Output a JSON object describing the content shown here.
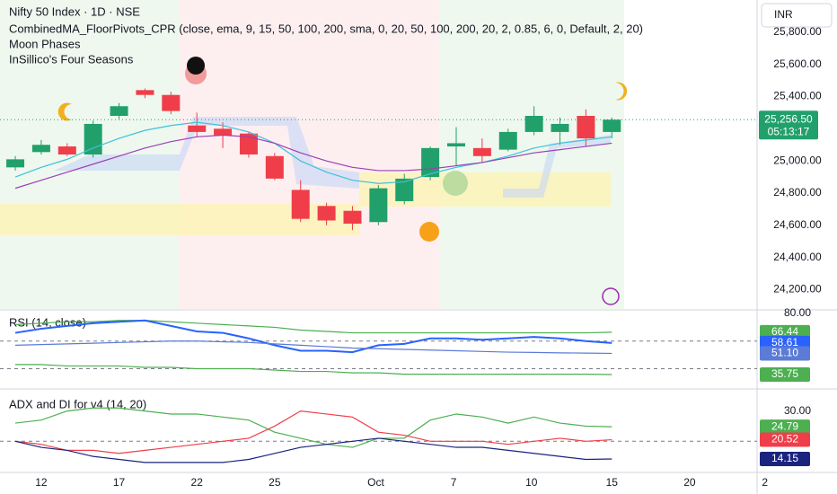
{
  "chart_data": [
    {
      "type": "candlestick",
      "title": "Nifty 50 Index · 1D · NSE",
      "annotations": [
        "CombinedMA_FloorPivots_CPR (close, ema, 9, 15, 50, 100, 200, sma, 0, 20, 50, 100, 200, 20, 2, 0.85, 6, 0, Default, 2, 20)",
        "Moon Phases",
        "InSillico's Four Seasons"
      ],
      "currency": "INR",
      "x": [
        0,
        1,
        2,
        3,
        4,
        5,
        6,
        7,
        8,
        9,
        10,
        11,
        12,
        13,
        14,
        15,
        16,
        17,
        18,
        19,
        20,
        21,
        22,
        23
      ],
      "open": [
        24960,
        25055,
        25090,
        25040,
        25280,
        25440,
        25410,
        25220,
        25200,
        25170,
        25030,
        24820,
        24720,
        24690,
        24620,
        24750,
        24900,
        25090,
        25080,
        25070,
        25180,
        25180,
        25280,
        25180
      ],
      "high": [
        25030,
        25130,
        25110,
        25250,
        25360,
        25450,
        25430,
        25300,
        25240,
        25180,
        25050,
        24880,
        24740,
        24720,
        24850,
        24920,
        25090,
        25210,
        25140,
        25200,
        25340,
        25270,
        25320,
        25270
      ],
      "low": [
        24940,
        25040,
        25030,
        25020,
        25260,
        25390,
        25290,
        25150,
        25080,
        25020,
        24880,
        24620,
        24600,
        24570,
        24600,
        24730,
        24880,
        24970,
        24990,
        25060,
        25160,
        25100,
        25090,
        25140
      ],
      "close": [
        25010,
        25100,
        25040,
        25230,
        25340,
        25410,
        25310,
        25180,
        25160,
        25040,
        24890,
        24640,
        24630,
        24610,
        24830,
        24890,
        25080,
        25110,
        25030,
        25180,
        25280,
        25230,
        25140,
        25256.5
      ],
      "last_label": "25,256.50",
      "countdown": "05:13:17",
      "up_color": "#22a06b",
      "down_color": "#ef3e4a",
      "series": [
        {
          "color": "#3fc1d9",
          "values": [
            24900,
            24960,
            25010,
            25080,
            25140,
            25190,
            25220,
            25240,
            25220,
            25180,
            25110,
            25000,
            24930,
            24880,
            24860,
            24870,
            24920,
            24960,
            24990,
            25030,
            25080,
            25110,
            25130,
            25150
          ]
        },
        {
          "color": "#9c3fb8",
          "values": [
            24830,
            24880,
            24930,
            24980,
            25030,
            25080,
            25120,
            25150,
            25160,
            25150,
            25110,
            25050,
            25000,
            24960,
            24940,
            24940,
            24950,
            24970,
            24990,
            25020,
            25050,
            25070,
            25090,
            25110
          ]
        }
      ],
      "xlim": [
        -0.59,
        28.6
      ],
      "ylim": [
        24080,
        26000
      ],
      "yticks": [
        {
          "value": 25800,
          "label": "25,800.00"
        },
        {
          "value": 25600,
          "label": "25,600.00"
        },
        {
          "value": 25400,
          "label": "25,400.00"
        },
        {
          "value": 25000,
          "label": "25,000.00"
        },
        {
          "value": 24800,
          "label": "24,800.00"
        },
        {
          "value": 24600,
          "label": "24,600.00"
        },
        {
          "value": 24400,
          "label": "24,400.00"
        },
        {
          "value": 24200,
          "label": "24,200.00"
        }
      ],
      "xticks": [
        {
          "value": 1,
          "label": "12"
        },
        {
          "value": 4,
          "label": "17"
        },
        {
          "value": 7,
          "label": "22"
        },
        {
          "value": 10,
          "label": "25"
        },
        {
          "value": 13.9,
          "label": "Oct"
        },
        {
          "value": 16.9,
          "label": "7"
        },
        {
          "value": 19.9,
          "label": "10"
        },
        {
          "value": 23,
          "label": "15"
        },
        {
          "value": 26,
          "label": "20"
        },
        {
          "value": 28.9,
          "label": "2"
        }
      ]
    },
    {
      "type": "line",
      "title": "RSI (14, close)",
      "ylim": [
        26,
        82
      ],
      "yticks": [
        {
          "value": 80,
          "label": "80.00"
        }
      ],
      "levels": [
        60,
        40
      ],
      "series": [
        {
          "color": "#4caf50",
          "values": [
            72,
            73,
            74,
            74,
            75,
            75,
            74,
            73,
            72,
            71,
            70,
            68,
            67,
            66,
            66,
            66,
            66,
            66,
            66,
            66,
            66,
            66,
            66,
            66.44
          ],
          "last_label": "66.44"
        },
        {
          "color": "#2962ff",
          "values": [
            66,
            69,
            71,
            73,
            74,
            75,
            71,
            67,
            66,
            62,
            57,
            53,
            53,
            52,
            57,
            58,
            62,
            62,
            61,
            62,
            63,
            62,
            60,
            58.61
          ],
          "last_label": "58.61"
        },
        {
          "color": "#5b7bd6",
          "values": [
            57,
            57.5,
            58,
            58.5,
            59,
            59.5,
            60,
            60,
            59.5,
            59,
            58,
            57,
            56,
            55,
            54.5,
            54,
            53.5,
            53,
            52.5,
            52,
            51.8,
            51.5,
            51.3,
            51.1
          ],
          "last_label": "51.10"
        },
        {
          "color": "#4caf50",
          "values": [
            43,
            43,
            42,
            42,
            42,
            41,
            41,
            40,
            40,
            40,
            39,
            38,
            38,
            37,
            37,
            36,
            36,
            36,
            36,
            36,
            36,
            36,
            36,
            35.75
          ],
          "last_label": "35.75"
        }
      ]
    },
    {
      "type": "line",
      "title": "ADX and DI for v4 (14, 20)",
      "ylim": [
        10,
        37
      ],
      "yticks": [
        {
          "value": 30,
          "label": "30.00"
        }
      ],
      "levels": [
        20
      ],
      "series": [
        {
          "color": "#4caf50",
          "values": [
            26,
            27,
            30,
            31,
            31,
            30,
            29,
            29,
            28,
            27,
            23,
            21,
            19,
            18,
            21,
            21,
            27,
            29,
            28,
            26,
            28,
            26,
            25,
            24.79
          ],
          "last_label": "24.79"
        },
        {
          "color": "#ef3e4a",
          "values": [
            20,
            19,
            17,
            17,
            16,
            17,
            18,
            19,
            20,
            21,
            25,
            30,
            29,
            28,
            23,
            22,
            20,
            20,
            20,
            19,
            20,
            21,
            20,
            20.52
          ],
          "last_label": "20.52"
        },
        {
          "color": "#1a237e",
          "values": [
            20,
            18,
            17,
            15,
            14,
            13,
            13,
            13,
            13,
            14,
            16,
            18,
            19,
            20,
            21,
            20,
            19,
            18,
            18,
            17,
            16,
            15,
            14,
            14.15
          ],
          "last_label": "14.15"
        }
      ]
    }
  ]
}
